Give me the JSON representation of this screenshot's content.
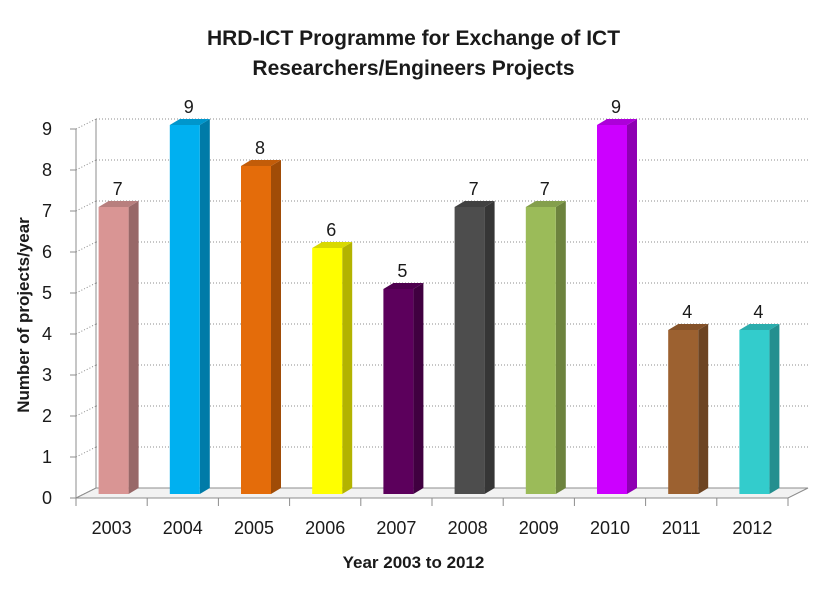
{
  "chart_data": {
    "type": "bar",
    "title": [
      "HRD-ICT Programme for Exchange of ICT",
      "Researchers/Engineers Projects"
    ],
    "xlabel": "Year 2003 to 2012",
    "ylabel": "Number of projects/year",
    "ylim": [
      0,
      9
    ],
    "yticks": [
      "0",
      "1",
      "2",
      "3",
      "4",
      "5",
      "6",
      "7",
      "8",
      "9"
    ],
    "grid": true,
    "categories": [
      "2003",
      "2004",
      "2005",
      "2006",
      "2007",
      "2008",
      "2009",
      "2010",
      "2011",
      "2012"
    ],
    "values": [
      7,
      9,
      8,
      6,
      5,
      7,
      7,
      9,
      4,
      4
    ],
    "data_labels": [
      "7",
      "9",
      "8",
      "6",
      "5",
      "7",
      "7",
      "9",
      "4",
      "4"
    ],
    "colors": [
      "#d99594",
      "#00b0f0",
      "#e46c0a",
      "#ffff00",
      "#5c005c",
      "#4d4d4d",
      "#9bbb59",
      "#cc00ff",
      "#9c6130",
      "#33cccc"
    ]
  }
}
